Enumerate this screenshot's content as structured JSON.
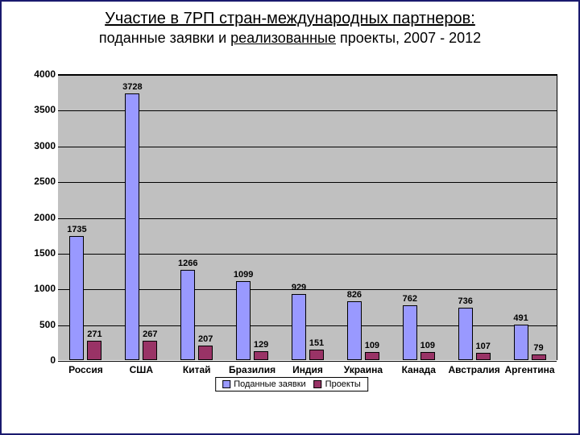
{
  "title": {
    "main": "Участие в 7РП стран-международных партнеров:",
    "sub_prefix": "поданные заявки и ",
    "sub_underlined": "реализованные",
    "sub_suffix": " проекты, 2007 - 2012",
    "main_fontsize": 20,
    "sub_fontsize": 18,
    "color": "#000000"
  },
  "chart": {
    "type": "bar",
    "background_color": "#c0c0c0",
    "grid_color": "#000000",
    "ylim": [
      0,
      4000
    ],
    "ytick_step": 500,
    "yticks": [
      0,
      500,
      1000,
      1500,
      2000,
      2500,
      3000,
      3500,
      4000
    ],
    "categories": [
      "Россия",
      "США",
      "Китай",
      "Бразилия",
      "Индия",
      "Украина",
      "Канада",
      "Австралия",
      "Аргентина"
    ],
    "series": [
      {
        "name": "Поданные заявки",
        "color": "#9999ff",
        "values": [
          1735,
          3728,
          1266,
          1099,
          929,
          826,
          762,
          736,
          491
        ]
      },
      {
        "name": "Проекты",
        "color": "#993366",
        "values": [
          271,
          267,
          207,
          129,
          151,
          109,
          109,
          107,
          79
        ]
      }
    ],
    "bar_border": "#000000",
    "label_fontsize": 11,
    "tick_fontsize": 12,
    "xlabel_fontsize": 12
  },
  "legend": {
    "items": [
      {
        "label": "Поданные заявки",
        "color": "#9999ff"
      },
      {
        "label": "Проекты",
        "color": "#993366"
      }
    ],
    "border": "#000000",
    "background": "#ffffff"
  }
}
